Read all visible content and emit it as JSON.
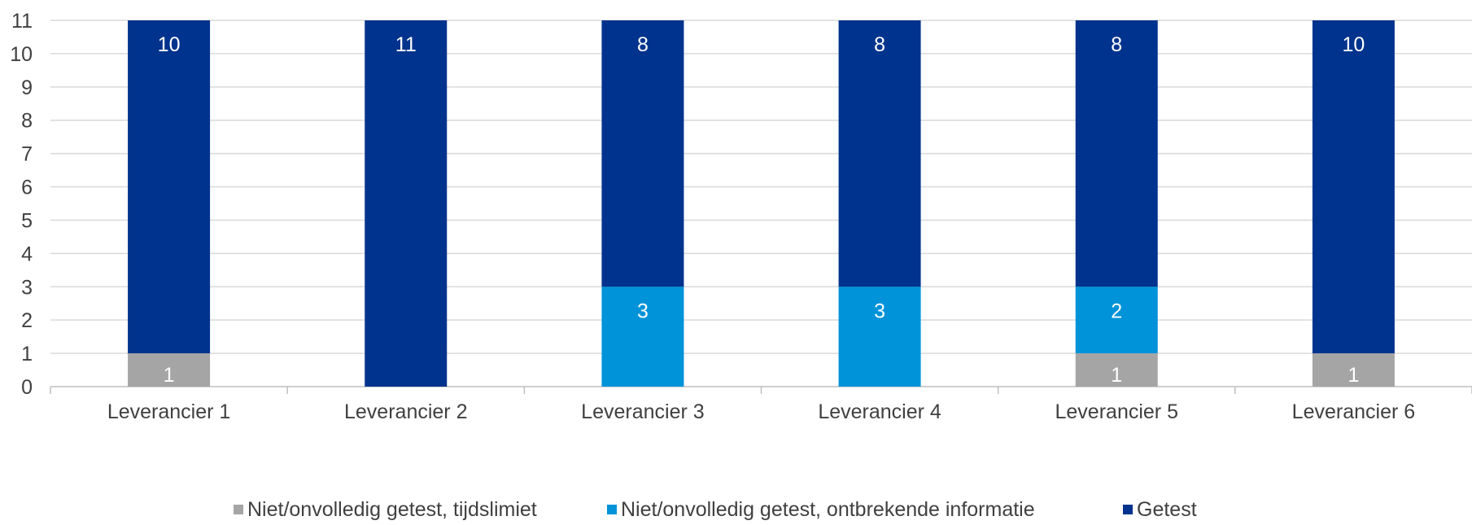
{
  "chart_data": {
    "type": "bar",
    "stacked": true,
    "categories": [
      "Leverancier 1",
      "Leverancier 2",
      "Leverancier 3",
      "Leverancier 4",
      "Leverancier 5",
      "Leverancier 6"
    ],
    "series": [
      {
        "name": "Niet/onvolledig getest, tijdslimiet",
        "color": "#a5a5a5",
        "values": [
          1,
          0,
          0,
          0,
          1,
          1
        ]
      },
      {
        "name": "Niet/onvolledig getest, ontbrekende informatie",
        "color": "#0093d9",
        "values": [
          0,
          0,
          3,
          3,
          2,
          0
        ]
      },
      {
        "name": "Getest",
        "color": "#00338d",
        "values": [
          10,
          11,
          8,
          8,
          8,
          10
        ]
      }
    ],
    "ylim": [
      0,
      11
    ],
    "yticks": [
      0,
      1,
      2,
      3,
      4,
      5,
      6,
      7,
      8,
      9,
      10,
      11
    ],
    "grid": true,
    "legend": "bottom",
    "data_labels": true
  }
}
